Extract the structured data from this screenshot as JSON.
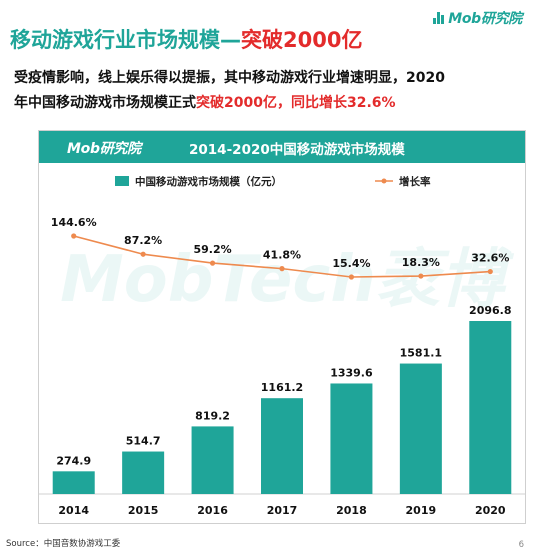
{
  "brand": {
    "name": "Mob研究院"
  },
  "headline": {
    "part1": "移动游戏行业市场规模—",
    "part2": "突破2000亿"
  },
  "description": {
    "line1": "受疫情影响，线上娱乐得以提振，其中移动游戏行业增速明显，2020",
    "line2_pre": "年中国移动游戏市场规模正式",
    "line2_red": "突破2000亿，同比增长32.6%"
  },
  "chart_header": {
    "brand": "Mob研究院",
    "title": "2014-2020中国移动游戏市场规模"
  },
  "watermark": {
    "text": "MobTech袤博"
  },
  "colors": {
    "bar": "#1fa599",
    "line": "#ee8a4e",
    "accent": "#e32b2b",
    "header": "#1fa599"
  },
  "chart_data": {
    "type": "bar",
    "categories": [
      "2014",
      "2015",
      "2016",
      "2017",
      "2018",
      "2019",
      "2020"
    ],
    "series": [
      {
        "name": "中国移动游戏市场规模（亿元）",
        "type": "bar",
        "values": [
          274.9,
          514.7,
          819.2,
          1161.2,
          1339.6,
          1581.1,
          2096.8
        ]
      },
      {
        "name": "增长率",
        "type": "line",
        "values": [
          144.6,
          87.2,
          59.2,
          41.8,
          15.4,
          18.3,
          32.6
        ],
        "value_labels": [
          "144.6%",
          "87.2%",
          "59.2%",
          "41.8%",
          "15.4%",
          "18.3%",
          "32.6%"
        ]
      }
    ],
    "legend": "top"
  },
  "footer": {
    "source": "Source：中国音数协游戏工委",
    "page": "6"
  }
}
